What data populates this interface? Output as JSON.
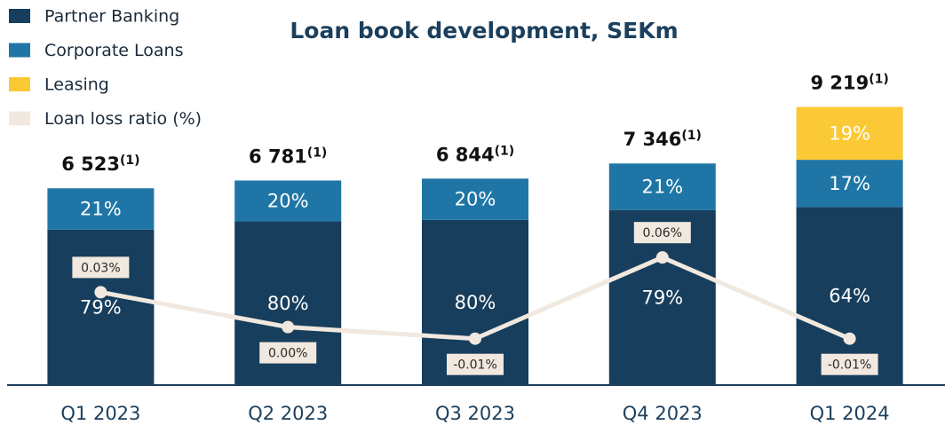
{
  "chart_data": {
    "type": "bar",
    "title": "Loan book development, SEKm",
    "categories": [
      "Q1 2023",
      "Q2 2023",
      "Q3 2023",
      "Q4 2023",
      "Q1 2024"
    ],
    "series": [
      {
        "name": "Partner Banking",
        "color": "#173e5c",
        "values": [
          79,
          80,
          80,
          79,
          64
        ],
        "value_labels": [
          "79%",
          "80%",
          "80%",
          "79%",
          "64%"
        ]
      },
      {
        "name": "Corporate Loans",
        "color": "#1f76a6",
        "values": [
          21,
          20,
          20,
          21,
          17
        ],
        "value_labels": [
          "21%",
          "20%",
          "20%",
          "21%",
          "17%"
        ]
      },
      {
        "name": "Leasing",
        "color": "#fbc935",
        "values": [
          null,
          null,
          null,
          null,
          19
        ],
        "value_labels": [
          null,
          null,
          null,
          null,
          "19%"
        ]
      },
      {
        "name": "Loan loss ratio (%)",
        "type": "line",
        "axis": "y2",
        "color": "#f1e8df",
        "values": [
          0.03,
          0.0,
          -0.01,
          0.06,
          -0.01
        ],
        "value_labels": [
          "0.03%",
          "0.00%",
          "-0.01%",
          "0.06%",
          "-0.01%"
        ]
      }
    ],
    "totals": [
      6523,
      6781,
      6844,
      7346,
      9219
    ],
    "total_labels": [
      "6 523",
      "6 781",
      "6 844",
      "7 346",
      "9 219"
    ],
    "total_note": "(1)",
    "ylim": [
      0,
      10000
    ],
    "y2lim": [
      -0.05,
      0.21
    ],
    "legend": "top-left"
  }
}
